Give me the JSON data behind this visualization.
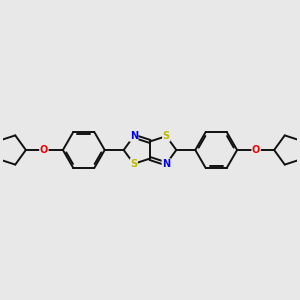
{
  "background_color": "#e8e8e8",
  "bond_color": "#111111",
  "sulfur_color": "#bbbb00",
  "nitrogen_color": "#0000ee",
  "oxygen_color": "#ee0000",
  "line_width": 1.4,
  "figsize": [
    3.0,
    3.0
  ],
  "dpi": 100,
  "xlim": [
    -1.55,
    1.55
  ],
  "ylim": [
    -0.85,
    0.85
  ]
}
